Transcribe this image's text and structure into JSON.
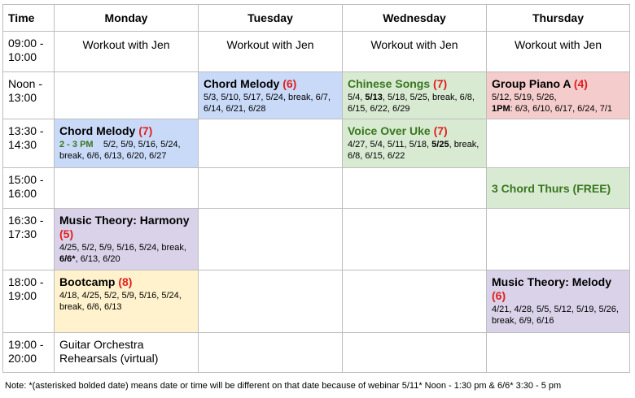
{
  "headers": {
    "time": "Time",
    "monday": "Monday",
    "tuesday": "Tuesday",
    "wednesday": "Wednesday",
    "thursday": "Thursday"
  },
  "times": [
    "09:00 - 10:00",
    "Noon - 13:00",
    "13:30 - 14:30",
    "15:00 - 16:00",
    "16:30 - 17:30",
    "18:00 - 19:00",
    "19:00 - 20:00"
  ],
  "workout": "Workout with Jen",
  "classes": {
    "tue_chord": {
      "title": "Chord Melody ",
      "count": "(6)",
      "dates": "5/3, 5/10, 5/17, 5/24, break, 6/7, 6/14, 6/21, 6/28"
    },
    "wed_chinese": {
      "title": "Chinese Songs ",
      "count": "(7)",
      "dates_a": "5/4, ",
      "dates_bold": "5/13",
      "dates_b": ", 5/18, 5/25, break, 6/8, 6/15, 6/22, 6/29"
    },
    "thu_piano": {
      "title": "Group Piano A ",
      "count": "(4)",
      "dates_a": "5/12, 5/19, 5/26,",
      "time_bold": "1PM",
      "dates_b": ": 6/3, 6/10, 6/17, 6/24, 7/1"
    },
    "mon_chord": {
      "title": "Chord Melody ",
      "count": "(7)",
      "time": "2 - 3 PM",
      "dates": "5/2, 5/9, 5/16, 5/24, break, 6/6, 6/13, 6/20, 6/27"
    },
    "wed_voice": {
      "title": "Voice Over Uke ",
      "count": "(7)",
      "dates_a": "4/27, 5/4, 5/11, 5/18, ",
      "dates_bold": "5/25",
      "dates_b": ", break, 6/8, 6/15, 6/22"
    },
    "thu_free": {
      "title": "3 Chord Thurs (FREE)"
    },
    "mon_theory": {
      "title": "Music Theory: Harmony ",
      "count": "(5)",
      "dates_a": "4/25, 5/2, 5/9, 5/16, 5/24, break, ",
      "dates_bold": "6/6*",
      "dates_b": ", 6/13, 6/20"
    },
    "mon_bootcamp": {
      "title": "Bootcamp ",
      "count": "(8)",
      "dates": "4/18, 4/25, 5/2, 5/9, 5/16, 5/24, break, 6/6, 6/13"
    },
    "thu_theory": {
      "title": "Music Theory: Melody ",
      "count": "(6)",
      "dates": "4/21, 4/28, 5/5, 5/12, 5/19, 5/26, break, 6/9, 6/16"
    },
    "mon_guitar": {
      "title": "Guitar Orchestra Rehearsals (virtual)"
    }
  },
  "note": "Note: *(asterisked bolded date) means date or time will be different on that date because of webinar 5/11* Noon - 1:30 pm & 6/6* 3:30 - 5 pm",
  "colors": {
    "blue": "#c9daf8",
    "green": "#d9ead3",
    "red": "#f4cccc",
    "purple": "#d9d2e9",
    "yellow": "#fff2cc",
    "count_red": "#e02020",
    "green_text": "#38761d"
  }
}
